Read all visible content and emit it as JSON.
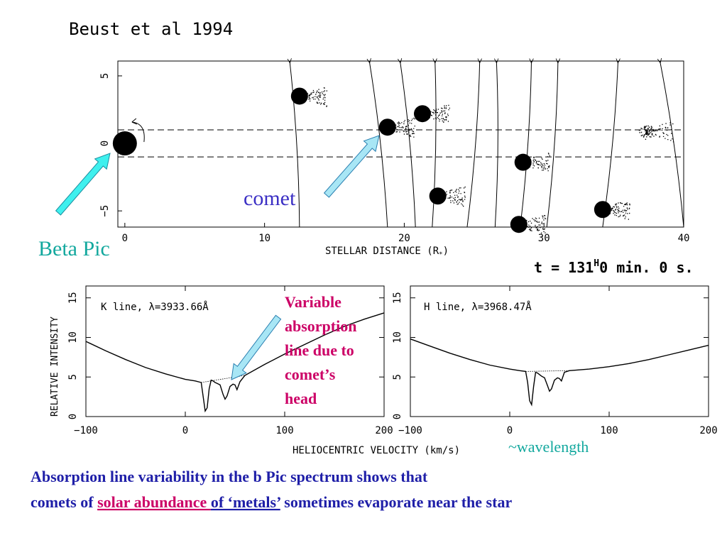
{
  "header": {
    "citation": "Beust et al 1994"
  },
  "orbit_plot": {
    "type": "scatter",
    "xlabel": "STELLAR DISTANCE (R",
    "xlabel_sub": "*",
    "xlabel_close": ")",
    "x_ticks": [
      0,
      10,
      20,
      30,
      40
    ],
    "y_ticks": [
      5,
      0,
      -5
    ],
    "xlim": [
      -0.5,
      40
    ],
    "ylim": [
      -6.2,
      6.1
    ],
    "line_of_sight_y": [
      1.0,
      -1.0
    ],
    "star": {
      "x": 0,
      "y": 0
    },
    "comets": [
      {
        "x": 12.5,
        "y": 3.5,
        "tail": "dense"
      },
      {
        "x": 18.8,
        "y": 1.2,
        "tail": "dense"
      },
      {
        "x": 21.3,
        "y": 2.2,
        "tail": "dense"
      },
      {
        "x": 22.4,
        "y": -3.9,
        "tail": "dense"
      },
      {
        "x": 28.5,
        "y": -1.4,
        "tail": "dense"
      },
      {
        "x": 28.2,
        "y": -6.0,
        "tail": "dense"
      },
      {
        "x": 34.2,
        "y": -4.9,
        "tail": "dense"
      },
      {
        "x": 37.3,
        "y": 0.9,
        "tail": "diffuse"
      }
    ],
    "orbit_tracks": [
      {
        "x_top": 11.8,
        "x_bottom": 12.5
      },
      {
        "x_top": 17.5,
        "x_bottom": 18.8
      },
      {
        "x_top": 19.7,
        "x_bottom": 20.8
      },
      {
        "x_top": 22.2,
        "x_bottom": 22.0
      },
      {
        "x_top": 25.4,
        "x_bottom": 24.5
      },
      {
        "x_top": 26.6,
        "x_bottom": 26.5
      },
      {
        "x_top": 29.1,
        "x_bottom": 28.3
      },
      {
        "x_top": 31.0,
        "x_bottom": 30.2
      },
      {
        "x_top": 35.3,
        "x_bottom": 34.2
      },
      {
        "x_top": 38.3,
        "x_bottom": 40.0
      }
    ],
    "time_label": "t = 131",
    "time_sup": "H",
    "time_rest": "0 min. 0 s."
  },
  "chart_data": [
    {
      "type": "line",
      "panel": "K",
      "title_prefix": "K line, λ=",
      "title_value": "3933.66Å",
      "ylabel": "RELATIVE INTENSITY",
      "xlim": [
        -100,
        200
      ],
      "ylim": [
        0,
        16.5
      ],
      "x_ticks": [
        -100,
        0,
        100,
        200
      ],
      "y_ticks": [
        0,
        5,
        10,
        15
      ],
      "x": [
        -100,
        -80,
        -60,
        -40,
        -20,
        0,
        10,
        16,
        18,
        20,
        22,
        24,
        26,
        28,
        30,
        32,
        35,
        38,
        40,
        42,
        45,
        48,
        50,
        52,
        55,
        60,
        80,
        100,
        120,
        140,
        160,
        180,
        200
      ],
      "y": [
        9.5,
        8.3,
        7.2,
        6.2,
        5.4,
        4.7,
        4.5,
        4.3,
        2.5,
        0.7,
        1.1,
        3.5,
        4.6,
        4.5,
        4.3,
        4.2,
        4.0,
        2.8,
        2.2,
        2.6,
        3.8,
        4.1,
        4.0,
        3.4,
        4.4,
        5.2,
        6.6,
        7.9,
        9.1,
        10.3,
        11.4,
        12.3,
        13.1
      ]
    },
    {
      "type": "line",
      "panel": "H",
      "title_prefix": "H line, λ=",
      "title_value": "3968.47Å",
      "xlim": [
        -100,
        200
      ],
      "ylim": [
        0,
        16.5
      ],
      "x_ticks": [
        -100,
        0,
        100,
        200
      ],
      "y_ticks": [
        0,
        5,
        10,
        15
      ],
      "x": [
        -100,
        -80,
        -60,
        -40,
        -20,
        0,
        10,
        16,
        18,
        20,
        22,
        24,
        26,
        28,
        30,
        32,
        35,
        38,
        40,
        42,
        45,
        48,
        50,
        52,
        55,
        60,
        80,
        100,
        120,
        140,
        160,
        180,
        200
      ],
      "y": [
        9.8,
        8.9,
        8.0,
        7.2,
        6.5,
        6.0,
        5.8,
        5.7,
        4.3,
        2.0,
        1.5,
        3.8,
        5.6,
        5.5,
        5.3,
        5.1,
        4.9,
        3.9,
        3.2,
        3.5,
        4.6,
        4.9,
        4.8,
        4.5,
        5.6,
        5.8,
        6.0,
        6.3,
        6.7,
        7.2,
        7.8,
        8.4,
        9.0
      ]
    }
  ],
  "spectra": {
    "shared_xlabel": "HELIOCENTRIC VELOCITY (km/s)"
  },
  "annotations": {
    "comet": "comet",
    "beta_pic": "Beta Pic",
    "variable_line": [
      "Variable",
      "absorption",
      "line due to",
      "comet’s",
      "head"
    ],
    "wavelength": "~wavelength"
  },
  "caption": {
    "line1": "Absorption line variability in the b Pic spectrum shows that",
    "line2_a": "comets of ",
    "line2_b": "solar abundance ",
    "line2_c": "of ‘metals’",
    "line2_d": " sometimes evaporate near the star"
  },
  "colors": {
    "caption": "#1f1fa8",
    "highlight": "#cc0066",
    "teal": "#13a89e",
    "arrow_fill": "#3ff0ee",
    "arrow_fill_light": "#a8e6f5",
    "comet_label": "#3b2fc4"
  }
}
